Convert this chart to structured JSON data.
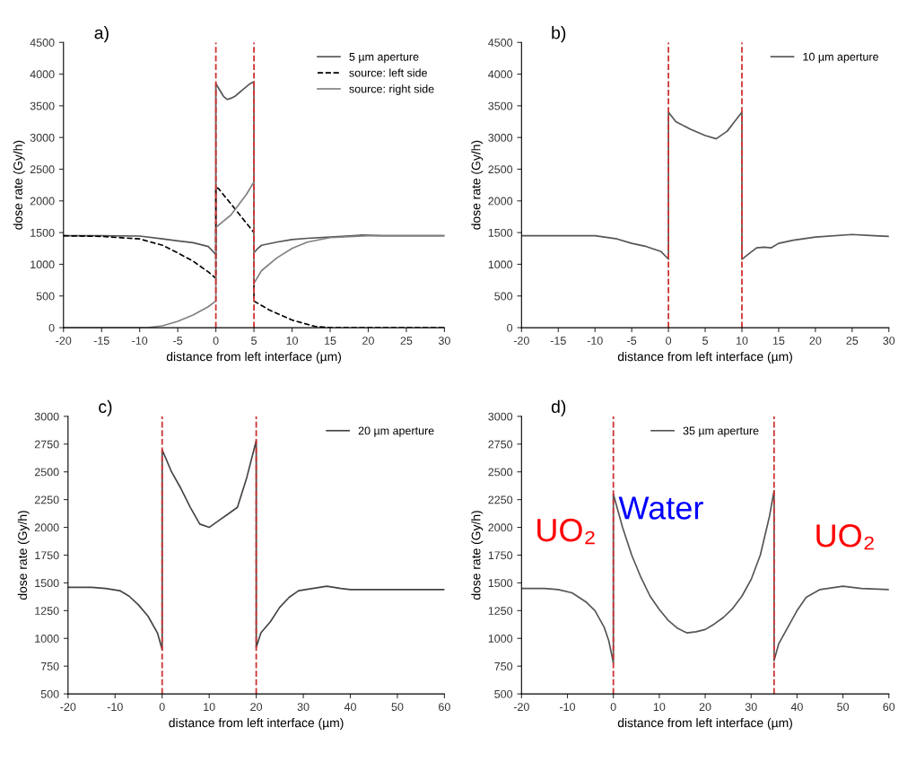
{
  "chart_data": [
    {
      "type": "line",
      "title": "a)",
      "xlabel": "distance from left interface (µm)",
      "ylabel": "dose rate (Gy/h)",
      "xlim": [
        -20,
        30
      ],
      "ylim": [
        0,
        4500
      ],
      "xticks": [
        -20,
        -15,
        -10,
        -5,
        0,
        5,
        10,
        15,
        20,
        25,
        30
      ],
      "yticks": [
        0,
        500,
        1000,
        1500,
        2000,
        2500,
        3000,
        3500,
        4000,
        4500
      ],
      "grid": false,
      "legend": "top right",
      "ref_lines": [
        {
          "axis": "x",
          "value": 0,
          "color": "#cc3333",
          "line_style": "dashed"
        },
        {
          "axis": "x",
          "value": 5,
          "color": "#cc3333",
          "line_style": "dashed"
        }
      ],
      "series": [
        {
          "name": "5 µm aperture",
          "color": "#555555",
          "line_style": "solid",
          "x": [
            -20,
            -15,
            -10,
            -7,
            -5,
            -3,
            -1,
            -0.2,
            0,
            0,
            0.5,
            1,
            1.5,
            2,
            2.5,
            3,
            3.5,
            4,
            4.5,
            5,
            5,
            5.5,
            6,
            8,
            10,
            12,
            15,
            19,
            22,
            30
          ],
          "values": [
            1450,
            1450,
            1445,
            1400,
            1370,
            1340,
            1280,
            1180,
            1150,
            3850,
            3750,
            3650,
            3600,
            3620,
            3650,
            3700,
            3750,
            3800,
            3850,
            3880,
            1180,
            1250,
            1300,
            1350,
            1390,
            1410,
            1430,
            1460,
            1450,
            1450
          ]
        },
        {
          "name": "source: left side",
          "color": "#000000",
          "line_style": "dashed",
          "x": [
            -20,
            -15,
            -10,
            -7,
            -5,
            -3,
            -1,
            0,
            0,
            0.3,
            2,
            4,
            5,
            5,
            7,
            10,
            13,
            15,
            30
          ],
          "values": [
            1450,
            1440,
            1400,
            1300,
            1180,
            1050,
            880,
            780,
            2200,
            2200,
            1950,
            1650,
            1500,
            420,
            280,
            120,
            20,
            0,
            0
          ]
        },
        {
          "name": "source: right side",
          "color": "#808080",
          "line_style": "solid",
          "x": [
            -20,
            -9,
            -7,
            -5,
            -3,
            -1,
            0,
            0,
            2,
            4,
            5,
            5,
            6,
            8,
            10,
            12,
            15,
            20,
            30
          ],
          "values": [
            0,
            0,
            30,
            100,
            200,
            330,
            420,
            1580,
            1780,
            2100,
            2300,
            700,
            900,
            1100,
            1250,
            1350,
            1420,
            1450,
            1450
          ]
        }
      ]
    },
    {
      "type": "line",
      "title": "b)",
      "xlabel": "distance from left interface (µm)",
      "ylabel": "dose rate (Gy/h)",
      "xlim": [
        -20,
        30
      ],
      "ylim": [
        0,
        4500
      ],
      "xticks": [
        -20,
        -15,
        -10,
        -5,
        0,
        5,
        10,
        15,
        20,
        25,
        30
      ],
      "yticks": [
        0,
        500,
        1000,
        1500,
        2000,
        2500,
        3000,
        3500,
        4000,
        4500
      ],
      "grid": false,
      "legend": "top right",
      "ref_lines": [
        {
          "axis": "x",
          "value": 0,
          "color": "#cc3333",
          "line_style": "dashed"
        },
        {
          "axis": "x",
          "value": 10,
          "color": "#cc3333",
          "line_style": "dashed"
        }
      ],
      "series": [
        {
          "name": "10 µm aperture",
          "color": "#555555",
          "line_style": "solid",
          "x": [
            -20,
            -10,
            -7,
            -5,
            -3,
            -1,
            0,
            0,
            1,
            3,
            5,
            6.5,
            8,
            9,
            10,
            10,
            11,
            12,
            13,
            14,
            15,
            17,
            20,
            25,
            28,
            30
          ],
          "values": [
            1450,
            1450,
            1400,
            1330,
            1280,
            1200,
            1080,
            3400,
            3250,
            3130,
            3030,
            2980,
            3100,
            3250,
            3400,
            1080,
            1170,
            1260,
            1270,
            1260,
            1330,
            1380,
            1430,
            1470,
            1450,
            1440
          ]
        }
      ]
    },
    {
      "type": "line",
      "title": "c)",
      "xlabel": "distance from left interface (µm)",
      "ylabel": "dose rate (Gy/h)",
      "xlim": [
        -20,
        60
      ],
      "ylim": [
        500,
        3000
      ],
      "xticks": [
        -20,
        -10,
        0,
        10,
        20,
        30,
        40,
        50,
        60
      ],
      "yticks": [
        500,
        750,
        1000,
        1250,
        1500,
        1750,
        2000,
        2250,
        2500,
        2750,
        3000
      ],
      "grid": false,
      "legend": "top right",
      "ref_lines": [
        {
          "axis": "x",
          "value": 0,
          "color": "#cc3333",
          "line_style": "dashed"
        },
        {
          "axis": "x",
          "value": 20,
          "color": "#cc3333",
          "line_style": "dashed"
        }
      ],
      "series": [
        {
          "name": "20 µm aperture",
          "color": "#444444",
          "line_style": "solid",
          "x": [
            -20,
            -15,
            -12,
            -9,
            -7,
            -5,
            -3,
            -1,
            0,
            0,
            2,
            4,
            6,
            8,
            10,
            12,
            14,
            16,
            18,
            20,
            20,
            21,
            23,
            25,
            27,
            29,
            32,
            35,
            38,
            40,
            60
          ],
          "values": [
            1460,
            1460,
            1450,
            1430,
            1380,
            1300,
            1200,
            1050,
            900,
            2700,
            2500,
            2350,
            2180,
            2030,
            2000,
            2060,
            2120,
            2180,
            2450,
            2780,
            920,
            1050,
            1150,
            1280,
            1370,
            1430,
            1450,
            1470,
            1450,
            1440,
            1440
          ]
        }
      ]
    },
    {
      "type": "line",
      "title": "d)",
      "xlabel": "distance from left interface (µm)",
      "ylabel": "dose rate (Gy/h)",
      "xlim": [
        -20,
        60
      ],
      "ylim": [
        500,
        3000
      ],
      "xticks": [
        -20,
        -10,
        0,
        10,
        20,
        30,
        40,
        50,
        60
      ],
      "yticks": [
        500,
        750,
        1000,
        1250,
        1500,
        1750,
        2000,
        2250,
        2500,
        2750,
        3000
      ],
      "grid": false,
      "legend": "top",
      "ref_lines": [
        {
          "axis": "x",
          "value": 0,
          "color": "#cc3333",
          "line_style": "dashed"
        },
        {
          "axis": "x",
          "value": 35,
          "color": "#cc3333",
          "line_style": "dashed"
        }
      ],
      "annotations": [
        "UO₂",
        "Water",
        "UO₂"
      ],
      "series": [
        {
          "name": "35 µm aperture",
          "color": "#555555",
          "line_style": "solid",
          "x": [
            -20,
            -15,
            -12,
            -9,
            -6,
            -4,
            -2,
            -1,
            0,
            0,
            1,
            2,
            4,
            6,
            8,
            10,
            12,
            14,
            16,
            18,
            20,
            22,
            24,
            26,
            28,
            30,
            32,
            34,
            35,
            35,
            36,
            38,
            40,
            42,
            45,
            50,
            54,
            60
          ],
          "values": [
            1450,
            1450,
            1440,
            1410,
            1330,
            1250,
            1100,
            980,
            780,
            2300,
            2150,
            2000,
            1750,
            1550,
            1380,
            1260,
            1160,
            1090,
            1050,
            1060,
            1080,
            1130,
            1190,
            1270,
            1380,
            1530,
            1750,
            2100,
            2330,
            800,
            950,
            1100,
            1250,
            1370,
            1440,
            1470,
            1450,
            1440
          ]
        }
      ]
    }
  ]
}
